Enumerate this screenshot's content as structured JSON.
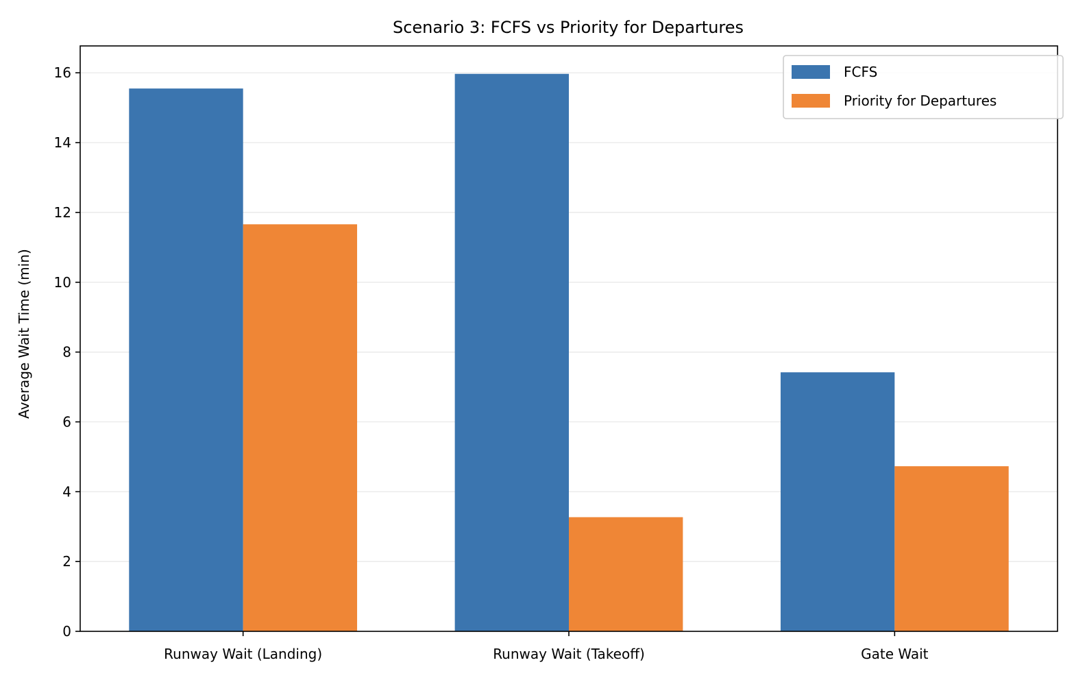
{
  "chart_data": {
    "type": "bar",
    "title": "Scenario 3: FCFS vs Priority for Departures",
    "xlabel": "",
    "ylabel": "Average Wait Time (min)",
    "categories": [
      "Runway Wait (Landing)",
      "Runway Wait (Takeoff)",
      "Gate Wait"
    ],
    "series": [
      {
        "name": "FCFS",
        "values": [
          15.55,
          15.97,
          7.42
        ],
        "color": "#3b75af"
      },
      {
        "name": "Priority for Departures",
        "values": [
          11.66,
          3.27,
          4.73
        ],
        "color": "#ef8636"
      }
    ],
    "ylim": [
      0,
      16.77
    ],
    "yticks": [
      0,
      2,
      4,
      6,
      8,
      10,
      12,
      14,
      16
    ],
    "grid": "y",
    "legend_position": "top-right",
    "grid_color": "#e6e6e6"
  }
}
